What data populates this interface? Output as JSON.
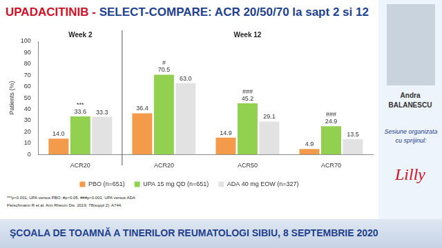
{
  "slide": {
    "title_parts": [
      "UPADACITINIB - ",
      "SELECT-COMPARE: ACR 20/50/70 la sapt 2 si 12"
    ],
    "speaker": [
      "Andra",
      "BALANESCU"
    ],
    "sponsor_text": "Sesiune organizata cu sprijinul:",
    "sponsor_logo": "Lilly",
    "footer": "ŞCOALA DE TOAMNĂ A TINERILOR REUMATOLOGI SIBIU, 8 SEPTEMBRIE 2020"
  },
  "chart_data": {
    "type": "bar",
    "y_label": "Patients (%)",
    "categories": [
      "ACR20",
      "ACR20",
      "ACR50",
      "ACR70"
    ],
    "groups": [
      "Week 2",
      "Week 12",
      "Week 12",
      "Week 12"
    ],
    "series": [
      {
        "name": "PBO (n=651)",
        "color": "#f39a4b",
        "values": [
          14.0,
          36.4,
          14.9,
          4.9
        ],
        "value_labels": [
          "14.0",
          "36.4",
          "14.9",
          "4.9"
        ]
      },
      {
        "name": "UPA 15 mg QD (n=651)",
        "color": "#92d050",
        "values": [
          33.6,
          70.5,
          45.2,
          24.9
        ],
        "value_labels": [
          "33.6",
          "70.5",
          "45.2",
          "24.9"
        ]
      },
      {
        "name": "ADA 40 mg EOW (n=327)",
        "color": "#e2e2e2",
        "values": [
          33.3,
          63.0,
          29.1,
          13.5
        ],
        "value_labels": [
          "33.3",
          "63.0",
          "29.1",
          "13.5"
        ]
      }
    ],
    "annotations": [
      {
        "index": 0,
        "series": "UPA 15 mg QD (n=651)",
        "text": "***"
      },
      {
        "index": 1,
        "series": "UPA 15 mg QD (n=651)",
        "text": "#"
      },
      {
        "index": 2,
        "series": "UPA 15 mg QD (n=651)",
        "text": "###"
      },
      {
        "index": 3,
        "series": "UPA 15 mg QD (n=651)",
        "text": "###"
      }
    ],
    "ylim": [
      0,
      100
    ],
    "yticks": [
      0,
      10,
      20,
      30,
      40,
      50,
      60,
      70,
      80,
      90,
      100
    ],
    "grid": false,
    "legend": "bottom",
    "data_labels": true,
    "footnotes": [
      "***p<0.001, UPA versus PBO; #p<0.05, ###p<0.001, UPA versus ADA",
      "Fleischmann R et al. Ann Rheum Dis. 2019; 78(suppl 2): A744."
    ]
  }
}
